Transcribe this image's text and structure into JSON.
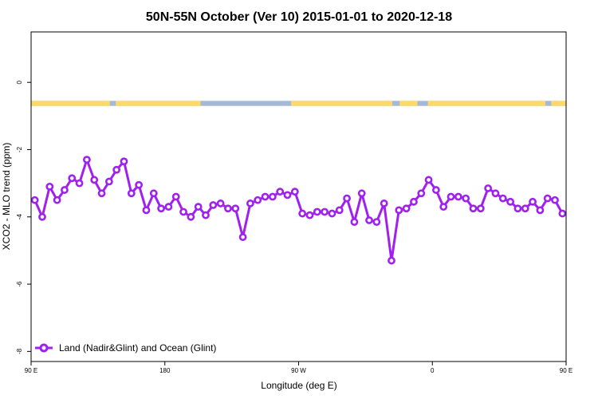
{
  "chart_data": {
    "type": "line",
    "title": "50N-55N October (Ver 10)   2015-01-01 to 2020-12-18",
    "xlabel": "Longitude (deg E)",
    "ylabel": "XCO2 - MLO trend (ppm)",
    "xlim": [
      90,
      450
    ],
    "ylim": [
      -8.3,
      1.5
    ],
    "x_ticks": [
      {
        "value": 90,
        "label": "90 E"
      },
      {
        "value": 180,
        "label": "180"
      },
      {
        "value": 270,
        "label": "90 W"
      },
      {
        "value": 360,
        "label": "0"
      },
      {
        "value": 450,
        "label": "90 E"
      }
    ],
    "y_ticks": [
      {
        "value": 0,
        "label": "0"
      },
      {
        "value": -2,
        "label": "-2"
      },
      {
        "value": -4,
        "label": "-4"
      },
      {
        "value": -6,
        "label": "-6"
      },
      {
        "value": -8,
        "label": "-8"
      }
    ],
    "legend": {
      "position": "bottom-left",
      "label": "Land (Nadir&Glint) and Ocean (Glint)"
    },
    "series_color": "#a020f0",
    "land_color": "#ffd966",
    "ocean_color": "#a4b8d8",
    "land_mask_band": {
      "y_range": [
        -0.55,
        -0.7
      ],
      "land_segments": [
        [
          90,
          143
        ],
        [
          147,
          204
        ],
        [
          265,
          333
        ],
        [
          338,
          350
        ],
        [
          357,
          436
        ],
        [
          440,
          450
        ]
      ]
    },
    "series": [
      {
        "name": "Land (Nadir&Glint) and Ocean (Glint)",
        "x": [
          92.5,
          97.5,
          102.5,
          107.5,
          112.5,
          117.5,
          122.5,
          127.5,
          132.5,
          137.5,
          142.5,
          147.5,
          152.5,
          157.5,
          162.5,
          167.5,
          172.5,
          177.5,
          182.5,
          187.5,
          192.5,
          197.5,
          202.5,
          207.5,
          212.5,
          217.5,
          222.5,
          227.5,
          232.5,
          237.5,
          242.5,
          247.5,
          252.5,
          257.5,
          262.5,
          267.5,
          272.5,
          277.5,
          282.5,
          287.5,
          292.5,
          297.5,
          302.5,
          307.5,
          312.5,
          317.5,
          322.5,
          327.5,
          332.5,
          337.5,
          342.5,
          347.5,
          352.5,
          357.5,
          362.5,
          367.5,
          372.5,
          377.5,
          382.5,
          387.5,
          392.5,
          397.5,
          402.5,
          407.5,
          412.5,
          417.5,
          422.5,
          427.5,
          432.5,
          437.5,
          442.5,
          447.5
        ],
        "values": [
          -3.5,
          -4.0,
          -3.1,
          -3.5,
          -3.2,
          -2.85,
          -3.0,
          -2.3,
          -2.9,
          -3.3,
          -2.95,
          -2.6,
          -2.35,
          -3.3,
          -3.05,
          -3.8,
          -3.3,
          -3.75,
          -3.7,
          -3.4,
          -3.85,
          -4.0,
          -3.7,
          -3.95,
          -3.65,
          -3.6,
          -3.75,
          -3.75,
          -4.6,
          -3.6,
          -3.5,
          -3.4,
          -3.4,
          -3.25,
          -3.35,
          -3.25,
          -3.9,
          -3.95,
          -3.85,
          -3.85,
          -3.9,
          -3.8,
          -3.45,
          -4.15,
          -3.3,
          -4.1,
          -4.15,
          -3.6,
          -5.3,
          -3.8,
          -3.75,
          -3.55,
          -3.3,
          -2.9,
          -3.2,
          -3.7,
          -3.4,
          -3.4,
          -3.45,
          -3.75,
          -3.75,
          -3.15,
          -3.3,
          -3.45,
          -3.55,
          -3.75,
          -3.75,
          -3.55,
          -3.8,
          -3.45,
          -3.5,
          -3.9
        ]
      }
    ]
  }
}
